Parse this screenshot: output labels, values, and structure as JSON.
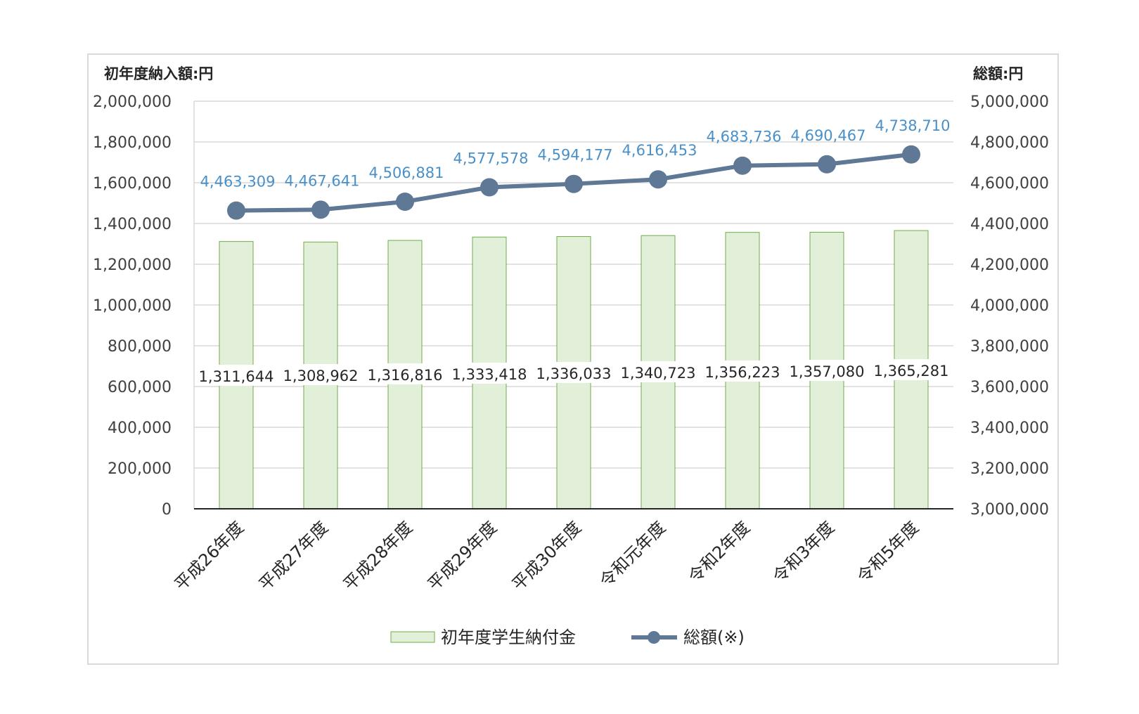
{
  "chart_data": {
    "type": "bar+line",
    "categories": [
      "平成26年度",
      "平成27年度",
      "平成28年度",
      "平成29年度",
      "平成30年度",
      "令和元年度",
      "令和2年度",
      "令和3年度",
      "令和5年度"
    ],
    "series": [
      {
        "name": "初年度学生納付金",
        "type": "bar",
        "axis": "left",
        "values": [
          1311644,
          1308962,
          1316816,
          1333418,
          1336033,
          1340723,
          1356223,
          1357080,
          1365281
        ],
        "labels": [
          "1,311,644",
          "1,308,962",
          "1,316,816",
          "1,333,418",
          "1,336,033",
          "1,340,723",
          "1,356,223",
          "1,357,080",
          "1,365,281"
        ],
        "color": "#e2f0d9",
        "border": "#70ad47"
      },
      {
        "name": "総額(※)",
        "type": "line",
        "axis": "right",
        "values": [
          4463309,
          4467641,
          4506881,
          4577578,
          4594177,
          4616453,
          4683736,
          4690467,
          4738710
        ],
        "labels": [
          "4,463,309",
          "4,467,641",
          "4,506,881",
          "4,577,578",
          "4,594,177",
          "4,616,453",
          "4,683,736",
          "4,690,467",
          "4,738,710"
        ],
        "color": "#5e7896",
        "label_color": "#4a90c8"
      }
    ],
    "left_axis": {
      "unit_label": "初年度納入額:円",
      "ylim": [
        0,
        2000000
      ],
      "ticks": [
        "0",
        "200,000",
        "400,000",
        "600,000",
        "800,000",
        "1,000,000",
        "1,200,000",
        "1,400,000",
        "1,600,000",
        "1,800,000",
        "2,000,000"
      ]
    },
    "right_axis": {
      "unit_label": "総額:円",
      "ylim": [
        3000000,
        5000000
      ],
      "ticks": [
        "3,000,000",
        "3,200,000",
        "3,400,000",
        "3,600,000",
        "3,800,000",
        "4,000,000",
        "4,200,000",
        "4,400,000",
        "4,600,000",
        "4,800,000",
        "5,000,000"
      ]
    },
    "grid": true,
    "legend": "bottom"
  }
}
